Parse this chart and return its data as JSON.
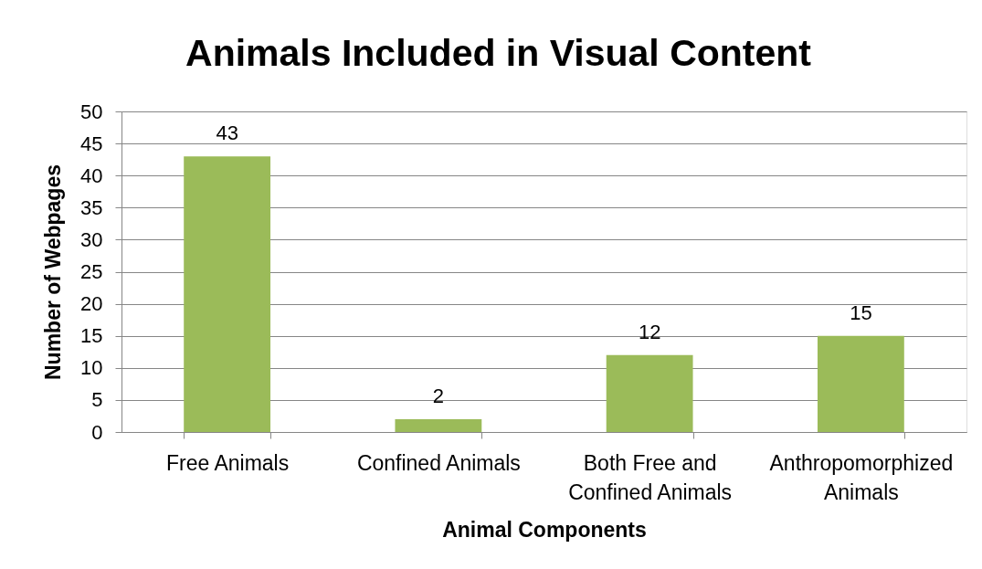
{
  "chart_data": {
    "type": "bar",
    "title": "Animals Included in Visual Content",
    "xlabel": "Animal Components",
    "ylabel": "Number of Webpages",
    "categories": [
      "Free Animals",
      "Confined Animals",
      "Both Free and Confined Animals",
      "Anthropomorphized Animals"
    ],
    "values": [
      43,
      2,
      12,
      15
    ],
    "color": "#9bbb59",
    "ylim": [
      0,
      50
    ],
    "yticks": [
      0,
      5,
      10,
      15,
      20,
      25,
      30,
      35,
      40,
      45,
      50
    ],
    "grid": "y",
    "data_labels": true
  }
}
